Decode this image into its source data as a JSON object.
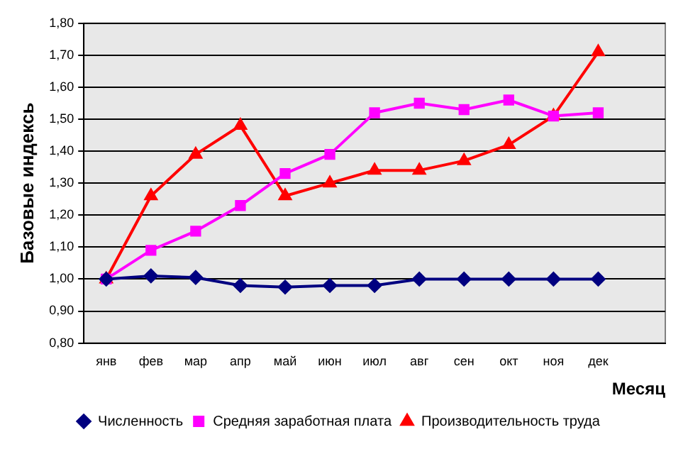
{
  "chart_data": {
    "type": "line",
    "ylabel": "Базовые индексь",
    "xlabel": "Месяц",
    "categories": [
      "янв",
      "фев",
      "мар",
      "апр",
      "май",
      "июн",
      "июл",
      "авг",
      "сен",
      "окт",
      "ноя",
      "дек",
      null
    ],
    "series": [
      {
        "name": "Численность",
        "color": "#000080",
        "marker": "diamond",
        "values": [
          1.0,
          1.01,
          1.005,
          0.98,
          0.975,
          0.98,
          0.98,
          1.0,
          1.0,
          1.0,
          1.0,
          1.0,
          null
        ]
      },
      {
        "name": "Средняя заработная плата",
        "color": "#ff00ff",
        "marker": "square",
        "values": [
          1.0,
          1.09,
          1.15,
          1.23,
          1.33,
          1.39,
          1.52,
          1.55,
          1.53,
          1.56,
          1.51,
          1.52,
          null
        ]
      },
      {
        "name": "Производительность труда",
        "color": "#ff0000",
        "marker": "triangle",
        "values": [
          1.0,
          1.26,
          1.39,
          1.48,
          1.26,
          1.3,
          1.34,
          1.34,
          1.37,
          1.42,
          1.51,
          1.71,
          null
        ]
      }
    ],
    "ylim": [
      0.8,
      1.8
    ],
    "yticks": [
      {
        "value": 0.8,
        "label": "0,80"
      },
      {
        "value": 0.9,
        "label": "0,90"
      },
      {
        "value": 1.0,
        "label": "1,00"
      },
      {
        "value": 1.1,
        "label": "1,10"
      },
      {
        "value": 1.2,
        "label": "1,20"
      },
      {
        "value": 1.3,
        "label": "1,30"
      },
      {
        "value": 1.4,
        "label": "1,40"
      },
      {
        "value": 1.5,
        "label": "1,50"
      },
      {
        "value": 1.6,
        "label": "1,60"
      },
      {
        "value": 1.7,
        "label": "1,70"
      },
      {
        "value": 1.8,
        "label": "1,80"
      }
    ],
    "grid": "y",
    "legend": "bottom",
    "line_style": "solid"
  }
}
